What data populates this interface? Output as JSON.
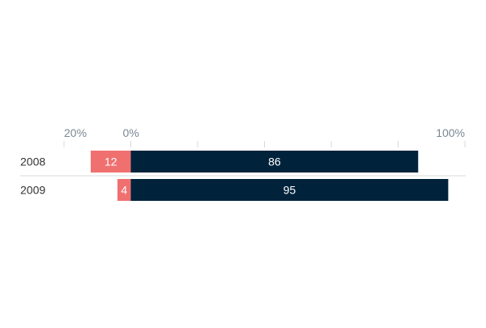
{
  "colors": {
    "negative": "#f07070",
    "positive": "#00223b",
    "axis_text": "#7a8894",
    "row_label": "#333333",
    "bar_text": "#ffffff",
    "grid": "#d9d9d9"
  },
  "chart_data": {
    "type": "bar",
    "orientation": "horizontal",
    "stacked": "diverging",
    "categories": [
      "2008",
      "2009"
    ],
    "series": [
      {
        "values": [
          -12,
          -4
        ],
        "labels": [
          "12",
          "4"
        ]
      },
      {
        "values": [
          86,
          95
        ],
        "labels": [
          "86",
          "95"
        ]
      }
    ],
    "xlim": [
      -20,
      100
    ],
    "ticks": [
      {
        "value": -20,
        "label": "20%"
      },
      {
        "value": 0,
        "label": "0%"
      },
      {
        "value": 20,
        "label": ""
      },
      {
        "value": 40,
        "label": ""
      },
      {
        "value": 60,
        "label": ""
      },
      {
        "value": 80,
        "label": ""
      },
      {
        "value": 100,
        "label": "100%"
      }
    ],
    "grid": false,
    "legend": "none"
  }
}
